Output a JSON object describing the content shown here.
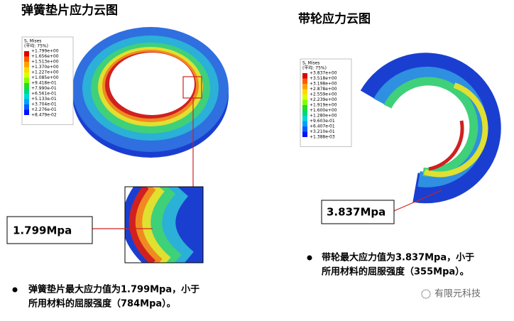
{
  "left": {
    "title": "弹簧垫片应力云图",
    "legend": {
      "title": "S, Mises",
      "subtitle": "(平均: 75%)",
      "values": [
        "+1.799e+00",
        "+1.656e+00",
        "+1.513e+00",
        "+1.370e+00",
        "+1.227e+00",
        "+1.085e+00",
        "+9.418e-01",
        "+7.990e-01",
        "+6.561e-01",
        "+5.133e-01",
        "+3.704e-01",
        "+2.276e-01",
        "+8.479e-02"
      ]
    },
    "callout": "1.799Mpa",
    "bullet": [
      "弹簧垫片最大应力值为1.799Mpa，小于",
      "所用材料的屈服强度（784Mpa）。"
    ]
  },
  "right": {
    "title": "带轮应力云图",
    "legend": {
      "title": "S, Mises",
      "subtitle": "(平均: 75%)",
      "values": [
        "+3.837e+00",
        "+3.518e+00",
        "+3.198e+00",
        "+2.878e+00",
        "+2.559e+00",
        "+2.239e+00",
        "+1.919e+00",
        "+1.600e+00",
        "+1.280e+00",
        "+9.603e-01",
        "+6.407e-01",
        "+3.210e-01",
        "+1.388e-03"
      ]
    },
    "callout": "3.837Mpa",
    "bullet": [
      "带轮最大应力值为3.837Mpa，小于",
      "所用材料的屈服强度（355Mpa）。"
    ]
  },
  "watermark": "有限元科技"
}
